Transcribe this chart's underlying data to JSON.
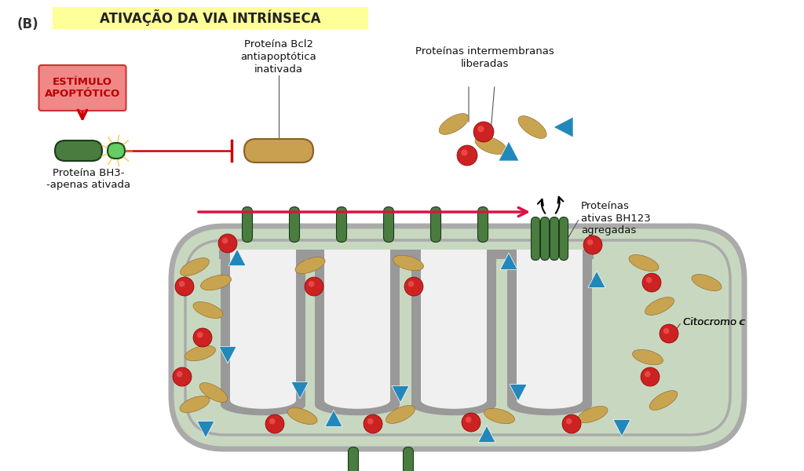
{
  "bg_color": "#ffffff",
  "highlight_color": "#ffff99",
  "stimulus_box_color": "#f08080",
  "stimulus_text": "ESTÍMULO\nAPOPTÓTICO",
  "bh3_label": "Proteína BH3-\n-apenas ativada",
  "bcl2_label": "Proteína Bcl2\nantiapoptótica\ninativada",
  "intermembrane_label": "Proteínas intermembranas\nliberadas",
  "bh123_label": "Proteínas\nativas BH123\nagregadas",
  "cytoc_label": "Citocromo c",
  "green_protein_color": "#4a7c3f",
  "tan_protein_color": "#c8a450",
  "red_sphere_color": "#cc2222",
  "blue_tri_color": "#2288bb",
  "mito_outer_color": "#aaaaaa",
  "mito_fill_color": "#c8d8c0",
  "crista_color": "#aaaaaa",
  "crista_fill": "#e8ede4",
  "title_b": "(B)",
  "title_highlight": "ATIVAÇÃO DA VIA INTRÍNSECA"
}
